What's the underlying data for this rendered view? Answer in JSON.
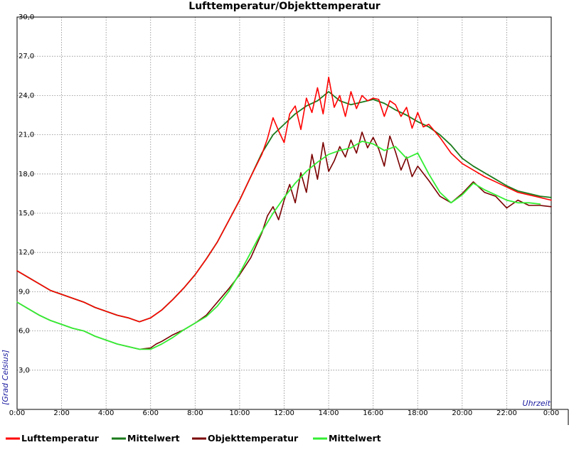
{
  "chart_data": {
    "type": "line",
    "title": "Lufttemperatur/Objekttemperatur",
    "xlabel": "Uhrzeit",
    "ylabel": "[Grad Celsius]",
    "xlim": [
      0,
      24
    ],
    "ylim": [
      0,
      30
    ],
    "grid": true,
    "legend_position": "bottom",
    "x_ticks": [
      "0:00",
      "2:00",
      "4:00",
      "6:00",
      "8:00",
      "10:00",
      "12:00",
      "14:00",
      "16:00",
      "18:00",
      "20:00",
      "22:00",
      "0:00"
    ],
    "y_ticks": [
      "3,0",
      "6,0",
      "9,0",
      "12,0",
      "15,0",
      "18,0",
      "21,0",
      "24,0",
      "27,0",
      "30,0"
    ],
    "series": [
      {
        "name": "Lufttemperatur",
        "color": "#ff0000",
        "x": [
          0,
          0.5,
          1,
          1.5,
          2,
          2.5,
          3,
          3.5,
          4,
          4.5,
          5,
          5.5,
          6,
          6.5,
          7,
          7.5,
          8,
          8.5,
          9,
          9.5,
          10,
          10.5,
          11,
          11.25,
          11.5,
          11.75,
          12,
          12.25,
          12.5,
          12.75,
          13,
          13.25,
          13.5,
          13.75,
          14,
          14.25,
          14.5,
          14.75,
          15,
          15.25,
          15.5,
          15.75,
          16,
          16.25,
          16.5,
          16.75,
          17,
          17.25,
          17.5,
          17.75,
          18,
          18.25,
          18.5,
          18.75,
          19,
          19.5,
          20,
          20.5,
          21,
          21.5,
          22,
          22.5,
          23,
          23.5,
          24
        ],
        "values": [
          10.6,
          10.1,
          9.6,
          9.1,
          8.8,
          8.5,
          8.2,
          7.8,
          7.5,
          7.2,
          7.0,
          6.7,
          7.0,
          7.6,
          8.4,
          9.3,
          10.3,
          11.5,
          12.8,
          14.4,
          16.0,
          17.8,
          19.5,
          20.7,
          22.3,
          21.3,
          20.4,
          22.6,
          23.2,
          21.4,
          23.8,
          22.7,
          24.6,
          22.6,
          25.4,
          23.1,
          24.0,
          22.4,
          24.3,
          23.0,
          24.0,
          23.6,
          23.8,
          23.7,
          22.4,
          23.6,
          23.3,
          22.4,
          23.1,
          21.5,
          22.7,
          21.6,
          21.8,
          21.3,
          20.8,
          19.6,
          18.8,
          18.3,
          17.8,
          17.4,
          17.0,
          16.6,
          16.4,
          16.2,
          16.0
        ]
      },
      {
        "name": "Mittelwert",
        "color": "#1a7a1a",
        "x": [
          0,
          0.5,
          1,
          1.5,
          2,
          2.5,
          3,
          3.5,
          4,
          4.5,
          5,
          5.5,
          6,
          6.5,
          7,
          7.5,
          8,
          8.5,
          9,
          9.5,
          10,
          10.5,
          11,
          11.5,
          12,
          12.5,
          13,
          13.5,
          14,
          14.5,
          15,
          15.5,
          16,
          16.5,
          17,
          17.5,
          18,
          18.5,
          19,
          19.5,
          20,
          20.5,
          21,
          21.5,
          22,
          22.5,
          23,
          23.5,
          24
        ],
        "values": [
          10.6,
          10.1,
          9.6,
          9.1,
          8.8,
          8.5,
          8.2,
          7.8,
          7.5,
          7.2,
          7.0,
          6.7,
          7.0,
          7.6,
          8.4,
          9.3,
          10.3,
          11.5,
          12.8,
          14.4,
          16.0,
          17.8,
          19.6,
          21.0,
          21.8,
          22.6,
          23.2,
          23.6,
          24.3,
          23.6,
          23.3,
          23.5,
          23.7,
          23.4,
          22.9,
          22.5,
          22.0,
          21.6,
          21.0,
          20.2,
          19.2,
          18.6,
          18.1,
          17.6,
          17.1,
          16.7,
          16.5,
          16.3,
          16.2
        ]
      },
      {
        "name": "Objekttemperatur",
        "color": "#7a0000",
        "x": [
          0,
          0.5,
          1,
          1.5,
          2,
          2.5,
          3,
          3.5,
          4,
          4.5,
          5,
          5.5,
          6,
          6.25,
          6.5,
          7,
          7.5,
          8,
          8.5,
          9,
          9.5,
          10,
          10.5,
          11,
          11.25,
          11.5,
          11.75,
          12,
          12.25,
          12.5,
          12.75,
          13,
          13.25,
          13.5,
          13.75,
          14,
          14.25,
          14.5,
          14.75,
          15,
          15.25,
          15.5,
          15.75,
          16,
          16.25,
          16.5,
          16.75,
          17,
          17.25,
          17.5,
          17.75,
          18,
          18.5,
          19,
          19.5,
          20,
          20.5,
          21,
          21.5,
          22,
          22.5,
          23,
          23.5,
          24
        ],
        "values": [
          8.2,
          7.7,
          7.2,
          6.8,
          6.5,
          6.2,
          6.0,
          5.6,
          5.3,
          5.0,
          4.8,
          4.6,
          4.7,
          5.0,
          5.2,
          5.7,
          6.1,
          6.6,
          7.2,
          8.2,
          9.2,
          10.3,
          11.6,
          13.5,
          14.8,
          15.5,
          14.5,
          16.0,
          17.2,
          15.8,
          18.1,
          16.6,
          19.5,
          17.6,
          20.4,
          18.2,
          19.0,
          20.1,
          19.3,
          20.6,
          19.6,
          21.2,
          20.0,
          20.8,
          19.9,
          18.6,
          20.9,
          19.7,
          18.3,
          19.3,
          17.8,
          18.6,
          17.5,
          16.3,
          15.8,
          16.5,
          17.4,
          16.6,
          16.3,
          15.4,
          16.0,
          15.6,
          15.6,
          15.5
        ]
      },
      {
        "name": "Mittelwert",
        "color": "#33ee33",
        "x": [
          0,
          0.5,
          1,
          1.5,
          2,
          2.5,
          3,
          3.5,
          4,
          4.5,
          5,
          5.5,
          6,
          6.5,
          7,
          7.5,
          8,
          8.5,
          9,
          9.5,
          10,
          10.5,
          11,
          11.5,
          12,
          12.5,
          13,
          13.5,
          14,
          14.5,
          15,
          15.5,
          16,
          16.5,
          17,
          17.5,
          18,
          18.5,
          19,
          19.5,
          20,
          20.5,
          21,
          21.5,
          22,
          22.5,
          23,
          23.5
        ],
        "values": [
          8.2,
          7.7,
          7.2,
          6.8,
          6.5,
          6.2,
          6.0,
          5.6,
          5.3,
          5.0,
          4.8,
          4.6,
          4.6,
          5.0,
          5.5,
          6.1,
          6.6,
          7.1,
          7.9,
          9.0,
          10.4,
          12.0,
          13.6,
          15.0,
          16.2,
          17.3,
          18.2,
          18.9,
          19.5,
          19.8,
          20.0,
          20.5,
          20.3,
          19.8,
          20.1,
          19.2,
          19.6,
          18.0,
          16.6,
          15.8,
          16.4,
          17.3,
          16.8,
          16.4,
          16.0,
          15.8,
          15.8,
          15.7
        ]
      }
    ]
  }
}
